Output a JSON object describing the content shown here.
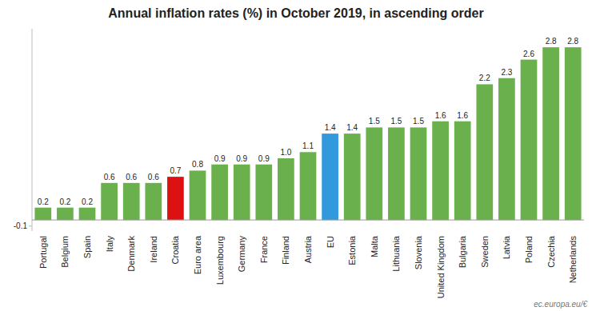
{
  "chart_data": {
    "type": "bar",
    "title": "Annual inflation rates (%)  in October 2019, in ascending order",
    "categories": [
      "Portugal",
      "Belgium",
      "Spain",
      "Italy",
      "Denmark",
      "Ireland",
      "Croatia",
      "Euro area",
      "Luxembourg",
      "Germany",
      "France",
      "Finland",
      "Austria",
      "EU",
      "Estonia",
      "Malta",
      "Lithuania",
      "Slovenia",
      "United Kingdom",
      "Bulgaria",
      "Sweden",
      "Latvia",
      "Poland",
      "Czechia",
      "Netherlands"
    ],
    "values": [
      0.2,
      0.2,
      0.2,
      0.6,
      0.6,
      0.6,
      0.7,
      0.8,
      0.9,
      0.9,
      0.9,
      1.0,
      1.1,
      1.4,
      1.4,
      1.5,
      1.5,
      1.5,
      1.6,
      1.6,
      2.2,
      2.3,
      2.6,
      2.8,
      2.8
    ],
    "value_labels": [
      "0.2",
      "0.2",
      "0.2",
      "0.6",
      "0.6",
      "0.6",
      "0.7",
      "0.8",
      "0.9",
      "0.9",
      "0.9",
      "1.0",
      "1.1",
      "1.4",
      "1.4",
      "1.5",
      "1.5",
      "1.5",
      "1.6",
      "1.6",
      "2.2",
      "2.3",
      "2.6",
      "2.8",
      "2.8"
    ],
    "colors": [
      "#6ab04c",
      "#6ab04c",
      "#6ab04c",
      "#6ab04c",
      "#6ab04c",
      "#6ab04c",
      "#dd1111",
      "#6ab04c",
      "#6ab04c",
      "#6ab04c",
      "#6ab04c",
      "#6ab04c",
      "#6ab04c",
      "#3399dd",
      "#6ab04c",
      "#6ab04c",
      "#6ab04c",
      "#6ab04c",
      "#6ab04c",
      "#6ab04c",
      "#6ab04c",
      "#6ab04c",
      "#6ab04c",
      "#6ab04c",
      "#6ab04c"
    ],
    "ylim": [
      -0.18,
      3.1
    ],
    "yticks": [
      -0.1
    ],
    "grid": false,
    "data_labels": true,
    "annotations": [
      "ec.europa.eu/€"
    ]
  }
}
